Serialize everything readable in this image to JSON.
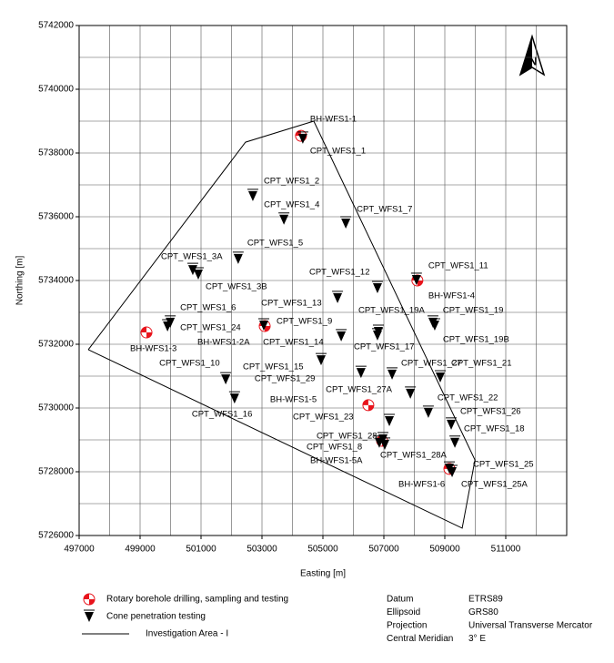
{
  "chart_data": {
    "type": "scatter",
    "xlabel": "Easting [m]",
    "ylabel": "Northing [m]",
    "xlim": [
      497000,
      513000
    ],
    "ylim": [
      5726000,
      5742000
    ],
    "xticks": [
      497000,
      499000,
      501000,
      503000,
      505000,
      507000,
      509000,
      511000
    ],
    "yticks": [
      5726000,
      5728000,
      5730000,
      5732000,
      5734000,
      5736000,
      5738000,
      5740000,
      5742000
    ],
    "xgrid": [
      497000,
      498000,
      499000,
      500000,
      501000,
      502000,
      503000,
      504000,
      505000,
      506000,
      507000,
      508000,
      509000,
      510000,
      511000,
      512000,
      513000
    ],
    "ygrid": [
      5726000,
      5727000,
      5728000,
      5729000,
      5730000,
      5731000,
      5732000,
      5733000,
      5734000,
      5735000,
      5736000,
      5737000,
      5738000,
      5739000,
      5740000,
      5741000,
      5742000
    ],
    "series": [
      {
        "name": "Rotary borehole drilling, sampling and testing",
        "color": "#e8141c",
        "marker": "borehole",
        "labels": [
          "BH-WFS1-1",
          "BH-WFS1-4",
          "BH-WFS1-3",
          "BH-WFS1-2A",
          "BH-WFS1-5",
          "BH-WFS1-5A",
          "BH-WFS1-6"
        ],
        "x": [
          504280,
          508100,
          499210,
          503090,
          506490,
          506940,
          509150
        ],
        "y": [
          5738540,
          5734000,
          5732370,
          5732570,
          5730090,
          5728970,
          5728090
        ]
      },
      {
        "name": "Cone penetration testing",
        "color": "#000000",
        "marker": "triangle",
        "labels": [
          "CPT_WFS1_1",
          "CPT_WFS1_2",
          "CPT_WFS1_4",
          "CPT_WFS1_7",
          "CPT_WFS1_5",
          "CPT_WFS1_3A",
          "CPT_WFS1_3B",
          "CPT_WFS1_12",
          "CPT_WFS1_11",
          "CPT_WFS1_13",
          "CPT_WFS1_6",
          "CPT_WFS1_24",
          "CPT_WFS1_9",
          "CPT_WFS1_19A",
          "CPT_WFS1_19",
          "CPT_WFS1_19B",
          "CPT_WFS1_14",
          "CPT_WFS1_17",
          "CPT_WFS1_10",
          "CPT_WFS1_15",
          "CPT_WFS1_29",
          "CPT_WFS1_27",
          "CPT_WFS1_21",
          "CPT_WFS1_27A",
          "CPT_WFS1_16",
          "CPT_WFS1_22",
          "CPT_WFS1_23",
          "CPT_WFS1_26",
          "CPT_WFS1_18",
          "CPT_WFS1_28",
          "CPT_WFS1_8",
          "CPT_WFS1_28A",
          "CPT_WFS1_25",
          "CPT_WFS1_25A"
        ],
        "x": [
          504340,
          502700,
          503720,
          505750,
          502220,
          500730,
          500910,
          506790,
          508070,
          505480,
          499990,
          499900,
          503060,
          506820,
          508610,
          508670,
          505600,
          506790,
          501810,
          504940,
          506250,
          507270,
          508850,
          507870,
          502100,
          508460,
          507180,
          509210,
          509330,
          506970,
          506850,
          507030,
          509150,
          509240
        ],
        "y": [
          5738460,
          5736660,
          5735920,
          5735800,
          5734690,
          5734340,
          5734200,
          5733770,
          5734030,
          5733460,
          5732690,
          5732570,
          5732600,
          5732400,
          5732690,
          5732600,
          5732260,
          5732290,
          5730910,
          5731510,
          5731110,
          5731060,
          5730970,
          5730460,
          5730310,
          5729860,
          5729600,
          5729490,
          5728920,
          5729030,
          5728920,
          5728860,
          5728110,
          5728000
        ]
      }
    ],
    "area": {
      "name": "Investigation Area - I",
      "color": "#000000",
      "x": [
        497300,
        502460,
        504700,
        509990,
        509570,
        497300
      ],
      "y": [
        5731830,
        5738340,
        5739000,
        5728370,
        5726230,
        5731830
      ]
    }
  },
  "info": [
    [
      "Datum",
      "ETRS89"
    ],
    [
      "Ellipsoid",
      "GRS80"
    ],
    [
      "Projection",
      "Universal Transverse Mercator"
    ],
    [
      "Central Meridian",
      "3° E"
    ]
  ]
}
